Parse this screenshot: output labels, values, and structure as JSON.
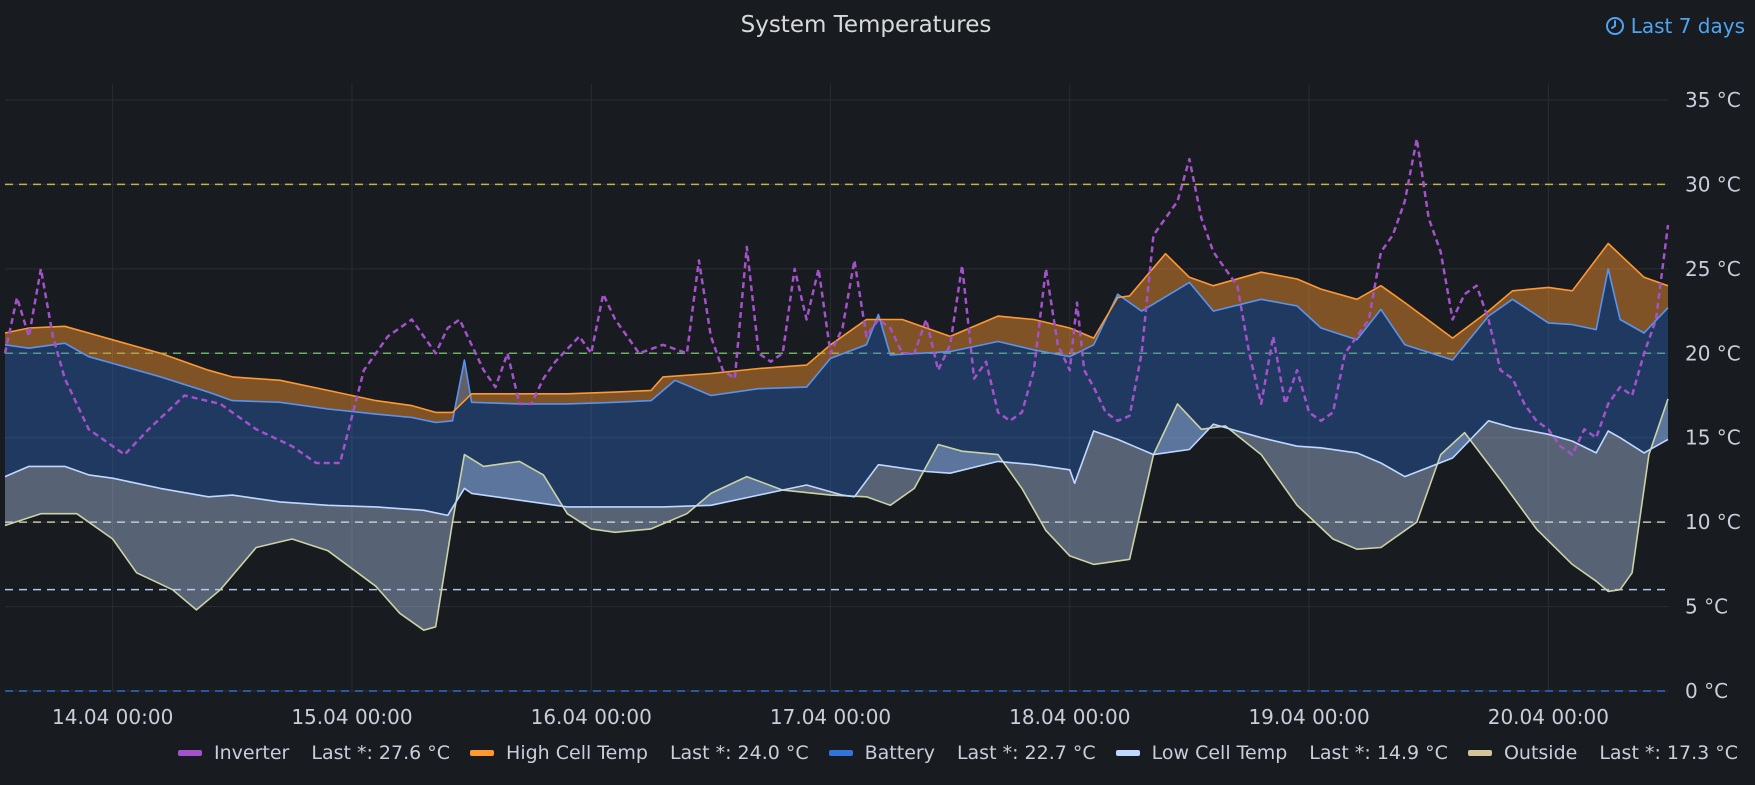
{
  "header": {
    "title": "System Temperatures",
    "time_range": "Last 7 days"
  },
  "legend": [
    {
      "name": "Inverter",
      "last": "Last *: 27.6 °C",
      "color": "#a352cc"
    },
    {
      "name": "High Cell Temp",
      "last": "Last *: 24.0 °C",
      "color": "#ff9830"
    },
    {
      "name": "Battery",
      "last": "Last *: 22.7 °C",
      "color": "#3274d9"
    },
    {
      "name": "Low Cell Temp",
      "last": "Last *: 14.9 °C",
      "color": "#c0d8ff"
    },
    {
      "name": "Outside",
      "last": "Last *: 17.3 °C",
      "color": "#d3c49a"
    }
  ],
  "chart_data": {
    "type": "line",
    "title": "System Temperatures",
    "unit": "°C",
    "ylim": [
      0,
      35
    ],
    "y_ticks": [
      0,
      5,
      10,
      15,
      20,
      25,
      30,
      35
    ],
    "y_tick_labels": [
      "0 °C",
      "5 °C",
      "10 °C",
      "15 °C",
      "20 °C",
      "25 °C",
      "30 °C",
      "35 °C"
    ],
    "xlim": [
      -0.45,
      6.5
    ],
    "x_ticks": [
      0,
      1,
      2,
      3,
      4,
      5,
      6
    ],
    "x_tick_labels": [
      "14.04 00:00",
      "15.04 00:00",
      "16.04 00:00",
      "17.04 00:00",
      "18.04 00:00",
      "19.04 00:00",
      "20.04 00:00"
    ],
    "x_unit": "days since 14.04 00:00",
    "thresholds": [
      {
        "value": 30,
        "color": "#d6c14a"
      },
      {
        "value": 20,
        "color": "#73bf69"
      },
      {
        "value": 10,
        "color": "#d3d9b0"
      },
      {
        "value": 6,
        "color": "#c0d8ff"
      },
      {
        "value": 0,
        "color": "#3274d9"
      }
    ],
    "series": [
      {
        "name": "High Cell Temp",
        "color": "#ff9830",
        "x": [
          -0.45,
          -0.35,
          -0.2,
          -0.1,
          0,
          0.2,
          0.4,
          0.5,
          0.7,
          0.9,
          1.1,
          1.25,
          1.35,
          1.42,
          1.5,
          1.7,
          1.9,
          2.1,
          2.25,
          2.3,
          2.5,
          2.7,
          2.9,
          3.0,
          3.15,
          3.3,
          3.5,
          3.7,
          3.85,
          4.0,
          4.1,
          4.2,
          4.25,
          4.4,
          4.5,
          4.6,
          4.8,
          4.95,
          5.05,
          5.2,
          5.3,
          5.4,
          5.6,
          5.75,
          5.85,
          6.0,
          6.1,
          6.25,
          6.4,
          6.5
        ],
        "values": [
          21.2,
          21.5,
          21.6,
          21.2,
          20.8,
          20.0,
          19.0,
          18.6,
          18.4,
          17.8,
          17.2,
          16.9,
          16.5,
          16.5,
          17.6,
          17.6,
          17.6,
          17.7,
          17.8,
          18.6,
          18.8,
          19.1,
          19.3,
          20.5,
          22.0,
          22.0,
          21.0,
          22.2,
          22.0,
          21.5,
          20.9,
          23.3,
          23.4,
          25.9,
          24.5,
          24.0,
          24.8,
          24.4,
          23.8,
          23.2,
          24.0,
          23.0,
          20.9,
          22.5,
          23.7,
          23.9,
          23.7,
          26.5,
          24.5,
          24.0
        ]
      },
      {
        "name": "Battery",
        "color": "#3274d9",
        "x": [
          -0.45,
          -0.35,
          -0.2,
          -0.1,
          0,
          0.2,
          0.4,
          0.5,
          0.7,
          0.9,
          1.1,
          1.25,
          1.35,
          1.42,
          1.47,
          1.5,
          1.7,
          1.9,
          2.1,
          2.25,
          2.35,
          2.5,
          2.7,
          2.9,
          3.0,
          3.15,
          3.2,
          3.25,
          3.5,
          3.7,
          3.85,
          4.0,
          4.1,
          4.2,
          4.3,
          4.5,
          4.6,
          4.8,
          4.95,
          5.05,
          5.2,
          5.3,
          5.4,
          5.6,
          5.75,
          5.85,
          6.0,
          6.1,
          6.2,
          6.25,
          6.3,
          6.4,
          6.5
        ],
        "values": [
          20.5,
          20.3,
          20.6,
          19.8,
          19.4,
          18.6,
          17.7,
          17.2,
          17.1,
          16.7,
          16.4,
          16.2,
          15.9,
          16.0,
          19.6,
          17.1,
          17.0,
          17.0,
          17.1,
          17.2,
          18.4,
          17.5,
          17.9,
          18.0,
          19.7,
          20.5,
          22.3,
          19.9,
          20.1,
          20.7,
          20.2,
          19.8,
          20.5,
          23.5,
          22.5,
          24.2,
          22.5,
          23.2,
          22.8,
          21.5,
          20.8,
          22.6,
          20.5,
          19.6,
          22.2,
          23.2,
          21.8,
          21.7,
          21.4,
          25.0,
          22.0,
          21.2,
          22.7
        ]
      },
      {
        "name": "Low Cell Temp",
        "color": "#c0d8ff",
        "x": [
          -0.45,
          -0.35,
          -0.2,
          -0.1,
          0,
          0.2,
          0.4,
          0.5,
          0.7,
          0.9,
          1.1,
          1.3,
          1.4,
          1.47,
          1.5,
          1.7,
          1.9,
          2.1,
          2.3,
          2.5,
          2.7,
          2.9,
          3.05,
          3.1,
          3.2,
          3.4,
          3.5,
          3.7,
          3.85,
          4.0,
          4.02,
          4.1,
          4.2,
          4.35,
          4.5,
          4.6,
          4.65,
          4.8,
          4.95,
          5.05,
          5.2,
          5.3,
          5.4,
          5.6,
          5.75,
          5.85,
          6.0,
          6.1,
          6.2,
          6.25,
          6.3,
          6.4,
          6.5
        ],
        "values": [
          12.7,
          13.3,
          13.3,
          12.8,
          12.6,
          12.0,
          11.5,
          11.6,
          11.2,
          11.0,
          10.9,
          10.7,
          10.4,
          12.0,
          11.7,
          11.3,
          10.9,
          10.9,
          10.9,
          11.0,
          11.6,
          12.2,
          11.6,
          11.5,
          13.4,
          13.0,
          12.9,
          13.6,
          13.4,
          13.1,
          12.3,
          15.4,
          14.9,
          14.0,
          14.3,
          15.8,
          15.6,
          15.0,
          14.5,
          14.4,
          14.1,
          13.5,
          12.7,
          13.8,
          16.0,
          15.6,
          15.2,
          14.8,
          14.1,
          15.4,
          15.0,
          14.1,
          14.9
        ]
      },
      {
        "name": "Outside",
        "color": "#d3c49a",
        "x": [
          -0.45,
          -0.3,
          -0.15,
          0,
          0.1,
          0.25,
          0.35,
          0.45,
          0.6,
          0.75,
          0.9,
          1.1,
          1.2,
          1.3,
          1.35,
          1.42,
          1.47,
          1.55,
          1.7,
          1.8,
          1.9,
          2.0,
          2.1,
          2.25,
          2.4,
          2.5,
          2.65,
          2.8,
          3.0,
          3.15,
          3.25,
          3.35,
          3.45,
          3.55,
          3.7,
          3.8,
          3.9,
          4.0,
          4.1,
          4.25,
          4.35,
          4.45,
          4.55,
          4.65,
          4.8,
          4.95,
          5.1,
          5.2,
          5.3,
          5.45,
          5.55,
          5.65,
          5.8,
          5.95,
          6.1,
          6.2,
          6.25,
          6.3,
          6.35,
          6.42,
          6.5
        ],
        "values": [
          9.8,
          10.5,
          10.5,
          9.0,
          7.0,
          6.0,
          4.8,
          6.0,
          8.5,
          9.0,
          8.3,
          6.2,
          4.6,
          3.6,
          3.8,
          10.0,
          14.0,
          13.3,
          13.6,
          12.8,
          10.5,
          9.6,
          9.4,
          9.6,
          10.5,
          11.7,
          12.7,
          11.9,
          11.6,
          11.5,
          11.0,
          12.0,
          14.6,
          14.2,
          14.0,
          12.0,
          9.5,
          8.0,
          7.5,
          7.8,
          14.0,
          17.0,
          15.5,
          15.7,
          14.0,
          11.0,
          9.0,
          8.4,
          8.5,
          10.0,
          14.0,
          15.3,
          12.5,
          9.6,
          7.5,
          6.5,
          5.9,
          6.0,
          7.0,
          14.0,
          17.3
        ]
      },
      {
        "name": "Inverter",
        "color": "#a352cc",
        "x": [
          -0.45,
          -0.4,
          -0.35,
          -0.3,
          -0.25,
          -0.2,
          -0.15,
          -0.1,
          -0.05,
          0,
          0.05,
          0.15,
          0.3,
          0.45,
          0.5,
          0.6,
          0.75,
          0.85,
          0.95,
          1.05,
          1.15,
          1.25,
          1.35,
          1.4,
          1.45,
          1.5,
          1.55,
          1.6,
          1.65,
          1.7,
          1.75,
          1.8,
          1.85,
          1.95,
          2.0,
          2.05,
          2.1,
          2.2,
          2.3,
          2.4,
          2.45,
          2.5,
          2.55,
          2.6,
          2.65,
          2.7,
          2.75,
          2.8,
          2.85,
          2.9,
          2.95,
          3.0,
          3.05,
          3.1,
          3.15,
          3.2,
          3.25,
          3.3,
          3.35,
          3.4,
          3.45,
          3.5,
          3.55,
          3.6,
          3.65,
          3.7,
          3.75,
          3.8,
          3.85,
          3.9,
          3.95,
          4.0,
          4.03,
          4.06,
          4.1,
          4.15,
          4.2,
          4.25,
          4.3,
          4.35,
          4.4,
          4.45,
          4.5,
          4.55,
          4.6,
          4.65,
          4.7,
          4.75,
          4.8,
          4.85,
          4.9,
          4.95,
          5.0,
          5.05,
          5.1,
          5.15,
          5.2,
          5.25,
          5.3,
          5.35,
          5.4,
          5.45,
          5.5,
          5.55,
          5.6,
          5.65,
          5.7,
          5.75,
          5.8,
          5.85,
          5.9,
          5.95,
          6.0,
          6.05,
          6.1,
          6.15,
          6.2,
          6.25,
          6.3,
          6.35,
          6.4,
          6.45,
          6.5
        ],
        "values": [
          20.0,
          23.3,
          21.0,
          25.0,
          21.0,
          18.5,
          17.0,
          15.5,
          15.0,
          14.5,
          14.0,
          15.5,
          17.5,
          17.0,
          16.5,
          15.5,
          14.5,
          13.5,
          13.5,
          19.0,
          21.0,
          22.0,
          20.0,
          21.5,
          22.0,
          20.5,
          19.0,
          18.0,
          20.0,
          17.0,
          17.0,
          18.5,
          19.5,
          21.0,
          20.0,
          23.5,
          22.0,
          20.0,
          20.5,
          20.0,
          25.5,
          21.0,
          19.0,
          18.5,
          26.3,
          20.0,
          19.5,
          20.0,
          25.0,
          22.0,
          25.0,
          20.0,
          21.5,
          25.5,
          21.0,
          22.0,
          21.5,
          20.0,
          20.0,
          22.0,
          19.0,
          20.5,
          25.2,
          18.5,
          19.5,
          16.5,
          16.0,
          16.5,
          19.0,
          25.0,
          20.5,
          19.0,
          23.0,
          19.0,
          18.0,
          16.5,
          16.0,
          16.3,
          20.0,
          27.0,
          28.0,
          29.0,
          31.5,
          28.0,
          26.0,
          25.0,
          24.0,
          20.0,
          17.0,
          21.0,
          17.0,
          19.0,
          16.5,
          16.0,
          16.5,
          20.0,
          21.0,
          22.0,
          26.0,
          27.0,
          29.0,
          32.7,
          28.0,
          26.0,
          22.0,
          23.5,
          24.0,
          22.0,
          19.0,
          18.5,
          17.0,
          16.0,
          15.5,
          14.5,
          14.0,
          15.5,
          15.0,
          17.0,
          18.0,
          17.5,
          20.0,
          22.0,
          27.6
        ]
      }
    ]
  }
}
